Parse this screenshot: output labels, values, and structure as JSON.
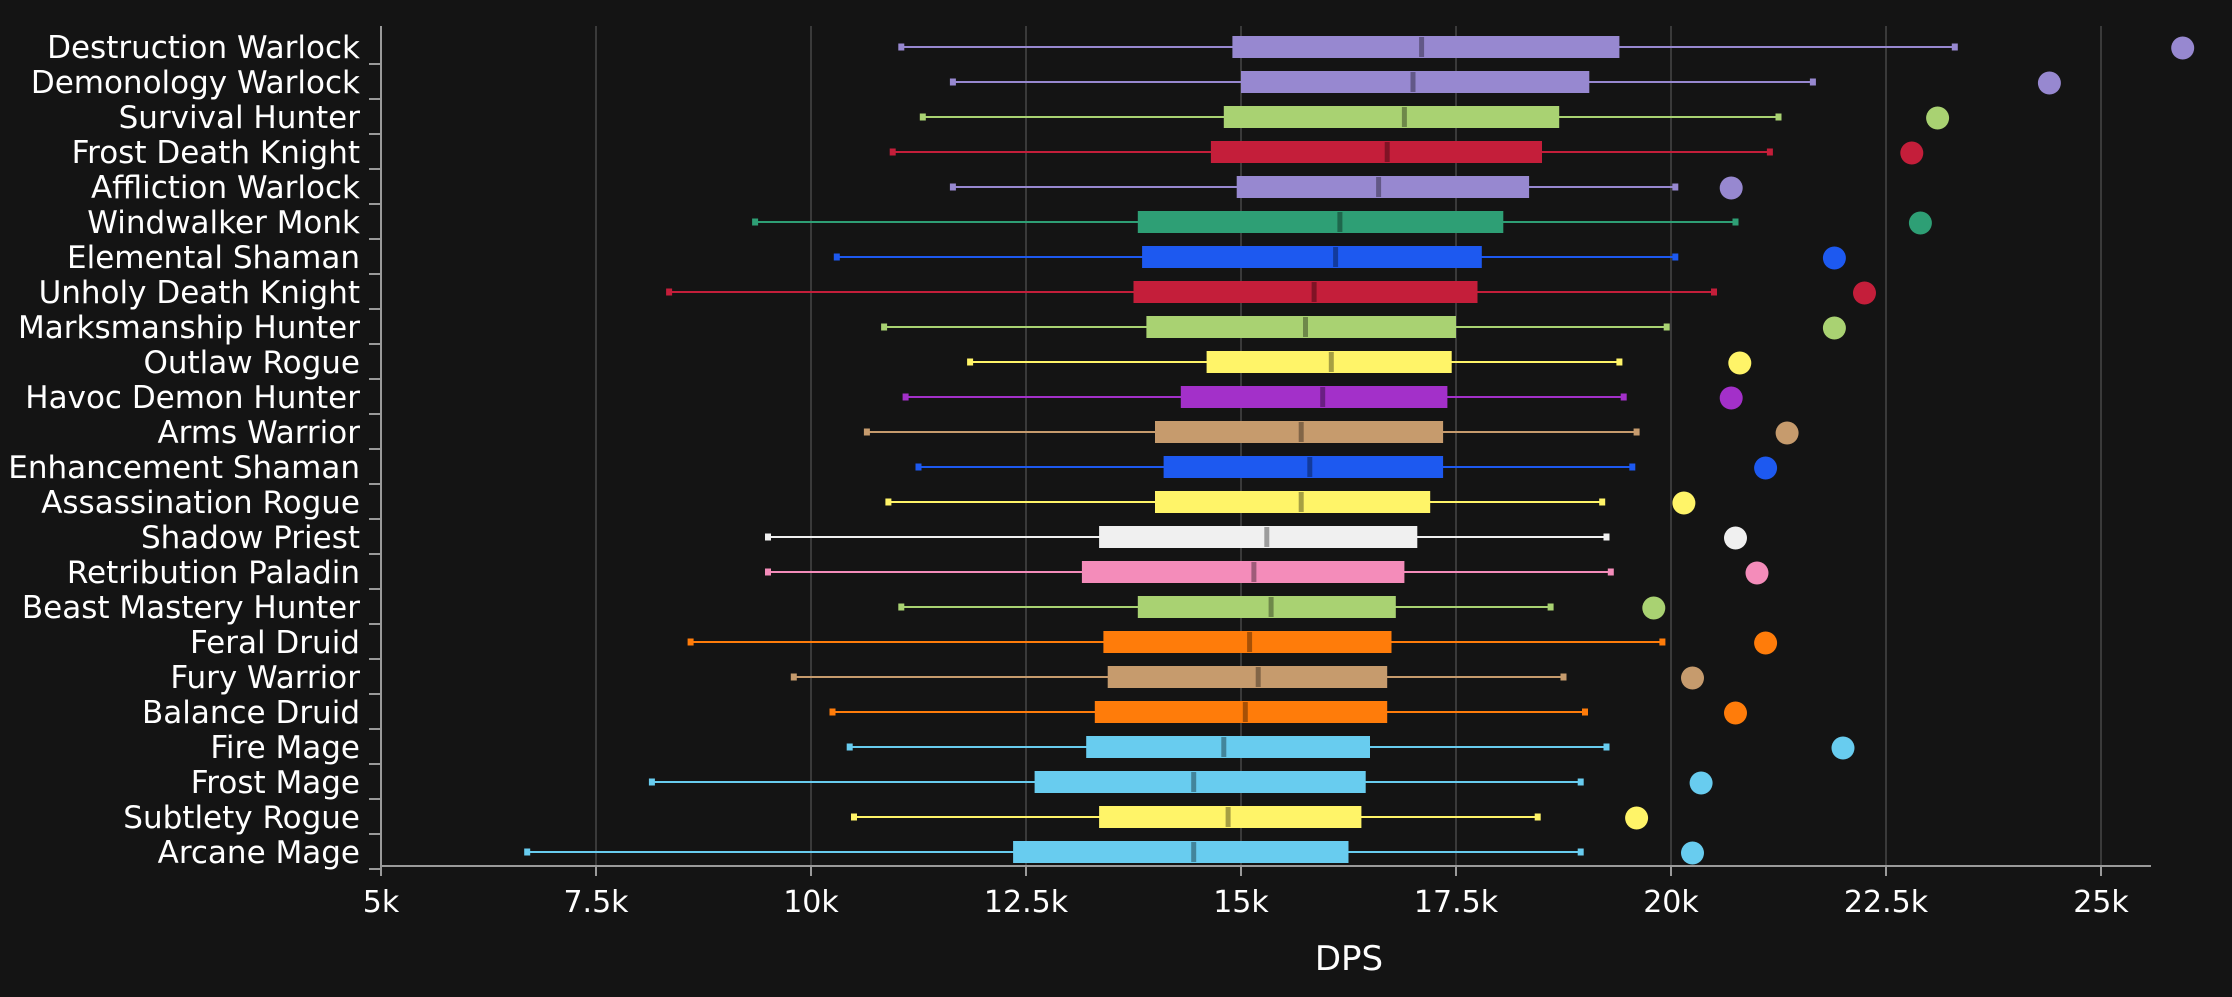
{
  "chart_data": {
    "type": "box",
    "xlabel": "DPS",
    "xlim": [
      5000,
      26000
    ],
    "xticks": [
      5000,
      7500,
      10000,
      12500,
      15000,
      17500,
      20000,
      22500,
      25000
    ],
    "xtick_labels": [
      "5k",
      "7.5k",
      "10k",
      "12.5k",
      "15k",
      "17.5k",
      "20k",
      "22.5k",
      "25k"
    ],
    "grid": true,
    "series": [
      {
        "name": "Destruction Warlock",
        "color": "#9788d0",
        "min": 11050,
        "q1": 14900,
        "median": 17100,
        "q3": 19400,
        "max": 23300,
        "outlier": 25950
      },
      {
        "name": "Demonology Warlock",
        "color": "#9788d0",
        "min": 11650,
        "q1": 15000,
        "median": 17000,
        "q3": 19050,
        "max": 21650,
        "outlier": 24400
      },
      {
        "name": "Survival Hunter",
        "color": "#a9d272",
        "min": 11300,
        "q1": 14800,
        "median": 16900,
        "q3": 18700,
        "max": 21250,
        "outlier": 23100
      },
      {
        "name": "Frost Death Knight",
        "color": "#c41e3a",
        "min": 10950,
        "q1": 14650,
        "median": 16700,
        "q3": 18500,
        "max": 21150,
        "outlier": 22800
      },
      {
        "name": "Affliction Warlock",
        "color": "#9788d0",
        "min": 11650,
        "q1": 14950,
        "median": 16600,
        "q3": 18350,
        "max": 20050,
        "outlier": 20700
      },
      {
        "name": "Windwalker Monk",
        "color": "#2e9f75",
        "min": 9350,
        "q1": 13800,
        "median": 16150,
        "q3": 18050,
        "max": 20750,
        "outlier": 22900
      },
      {
        "name": "Elemental Shaman",
        "color": "#1d59f0",
        "min": 10300,
        "q1": 13850,
        "median": 16100,
        "q3": 17800,
        "max": 20050,
        "outlier": 21900
      },
      {
        "name": "Unholy Death Knight",
        "color": "#c41e3a",
        "min": 8350,
        "q1": 13750,
        "median": 15850,
        "q3": 17750,
        "max": 20500,
        "outlier": 22250
      },
      {
        "name": "Marksmanship Hunter",
        "color": "#a9d272",
        "min": 10850,
        "q1": 13900,
        "median": 15750,
        "q3": 17500,
        "max": 19950,
        "outlier": 21900
      },
      {
        "name": "Outlaw Rogue",
        "color": "#fff468",
        "min": 11850,
        "q1": 14600,
        "median": 16050,
        "q3": 17450,
        "max": 19400,
        "outlier": 20800
      },
      {
        "name": "Havoc Demon Hunter",
        "color": "#a330c9",
        "min": 11100,
        "q1": 14300,
        "median": 15950,
        "q3": 17400,
        "max": 19450,
        "outlier": 20700
      },
      {
        "name": "Arms Warrior",
        "color": "#c69b6d",
        "min": 10650,
        "q1": 14000,
        "median": 15700,
        "q3": 17350,
        "max": 19600,
        "outlier": 21350
      },
      {
        "name": "Enhancement Shaman",
        "color": "#1d59f0",
        "min": 11250,
        "q1": 14100,
        "median": 15800,
        "q3": 17350,
        "max": 19550,
        "outlier": 21100
      },
      {
        "name": "Assassination Rogue",
        "color": "#fff468",
        "min": 10900,
        "q1": 14000,
        "median": 15700,
        "q3": 17200,
        "max": 19200,
        "outlier": 20150
      },
      {
        "name": "Shadow Priest",
        "color": "#f0f0f0",
        "min": 9500,
        "q1": 13350,
        "median": 15300,
        "q3": 17050,
        "max": 19250,
        "outlier": 20750
      },
      {
        "name": "Retribution Paladin",
        "color": "#f48cba",
        "min": 9500,
        "q1": 13150,
        "median": 15150,
        "q3": 16900,
        "max": 19300,
        "outlier": 21000
      },
      {
        "name": "Beast Mastery Hunter",
        "color": "#a9d272",
        "min": 11050,
        "q1": 13800,
        "median": 15350,
        "q3": 16800,
        "max": 18600,
        "outlier": 19800
      },
      {
        "name": "Feral Druid",
        "color": "#ff7c0a",
        "min": 8600,
        "q1": 13400,
        "median": 15100,
        "q3": 16750,
        "max": 19900,
        "outlier": 21100
      },
      {
        "name": "Fury Warrior",
        "color": "#c69b6d",
        "min": 9800,
        "q1": 13450,
        "median": 15200,
        "q3": 16700,
        "max": 18750,
        "outlier": 20250
      },
      {
        "name": "Balance Druid",
        "color": "#ff7c0a",
        "min": 10250,
        "q1": 13300,
        "median": 15050,
        "q3": 16700,
        "max": 19000,
        "outlier": 20750
      },
      {
        "name": "Fire Mage",
        "color": "#68ccef",
        "min": 10450,
        "q1": 13200,
        "median": 14800,
        "q3": 16500,
        "max": 19250,
        "outlier": 22000
      },
      {
        "name": "Frost Mage",
        "color": "#68ccef",
        "min": 8150,
        "q1": 12600,
        "median": 14450,
        "q3": 16450,
        "max": 18950,
        "outlier": 20350
      },
      {
        "name": "Subtlety Rogue",
        "color": "#fff468",
        "min": 10500,
        "q1": 13350,
        "median": 14850,
        "q3": 16400,
        "max": 18450,
        "outlier": 19600
      },
      {
        "name": "Arcane Mage",
        "color": "#68ccef",
        "min": 6700,
        "q1": 12350,
        "median": 14450,
        "q3": 16250,
        "max": 18950,
        "outlier": 20250
      }
    ]
  }
}
